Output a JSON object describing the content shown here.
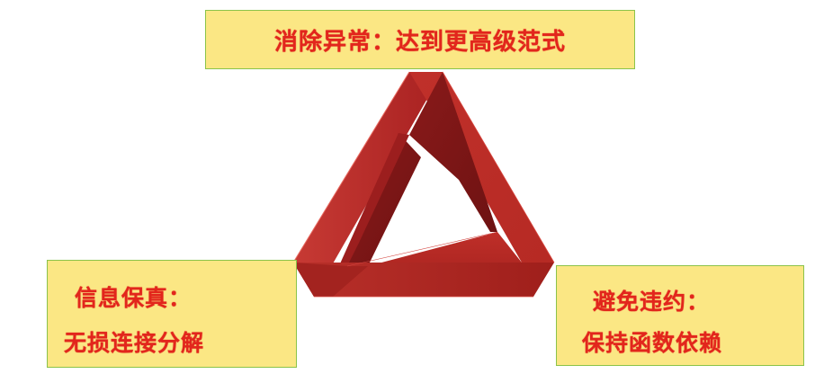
{
  "top_box": {
    "text": "消除异常：达到更高级范式"
  },
  "left_box": {
    "line1": "信息保真：",
    "line2": "无损连接分解"
  },
  "right_box": {
    "line1": "避免违约：",
    "line2": "保持函数依赖"
  },
  "colors": {
    "box_fill": "#fbe784",
    "box_border": "#8bc34a",
    "text": "#e2261c",
    "triangle_dark": "#7a1616",
    "triangle_mid": "#a82121",
    "triangle_light": "#c0312b"
  },
  "graphic": "impossible-triangle"
}
